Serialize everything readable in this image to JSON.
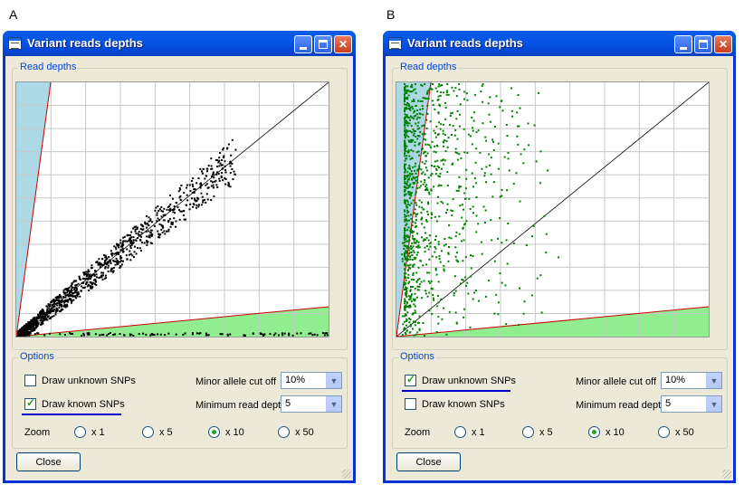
{
  "panels": [
    {
      "letter": "A",
      "title": "Variant reads depths",
      "read_depths_label": "Read depths",
      "options_label": "Options",
      "draw_unknown_label": "Draw unknown SNPs",
      "draw_unknown_checked": false,
      "draw_known_label": "Draw known SNPs",
      "draw_known_checked": true,
      "minor_allele_label": "Minor allele cut off",
      "minor_allele_value": "10%",
      "min_read_depth_label": "Minimum read depth",
      "min_read_depth_value": "5",
      "zoom_label": "Zoom",
      "zoom_options": [
        "x 1",
        "x 5",
        "x 10",
        "x 50"
      ],
      "zoom_selected": "x 10",
      "close_label": "Close",
      "dot_color": "#000000",
      "highlight": "draw-known"
    },
    {
      "letter": "B",
      "title": "Variant reads depths",
      "read_depths_label": "Read depths",
      "options_label": "Options",
      "draw_unknown_label": "Draw unknown SNPs",
      "draw_unknown_checked": true,
      "draw_known_label": "Draw known SNPs",
      "draw_known_checked": false,
      "minor_allele_label": "Minor allele cut off",
      "minor_allele_value": "10%",
      "min_read_depth_label": "Minimum read depth",
      "min_read_depth_value": "5",
      "zoom_label": "Zoom",
      "zoom_options": [
        "x 1",
        "x 5",
        "x 10",
        "x 50"
      ],
      "zoom_selected": "x 10",
      "close_label": "Close",
      "dot_color": "#008000",
      "highlight": "draw-unknown"
    }
  ],
  "colors": {
    "upper_wedge": "#add8e6",
    "lower_wedge": "#90ee90",
    "boundary_line": "#cc0000",
    "grid": "#c8c8c8",
    "underline": "#0000cc"
  }
}
